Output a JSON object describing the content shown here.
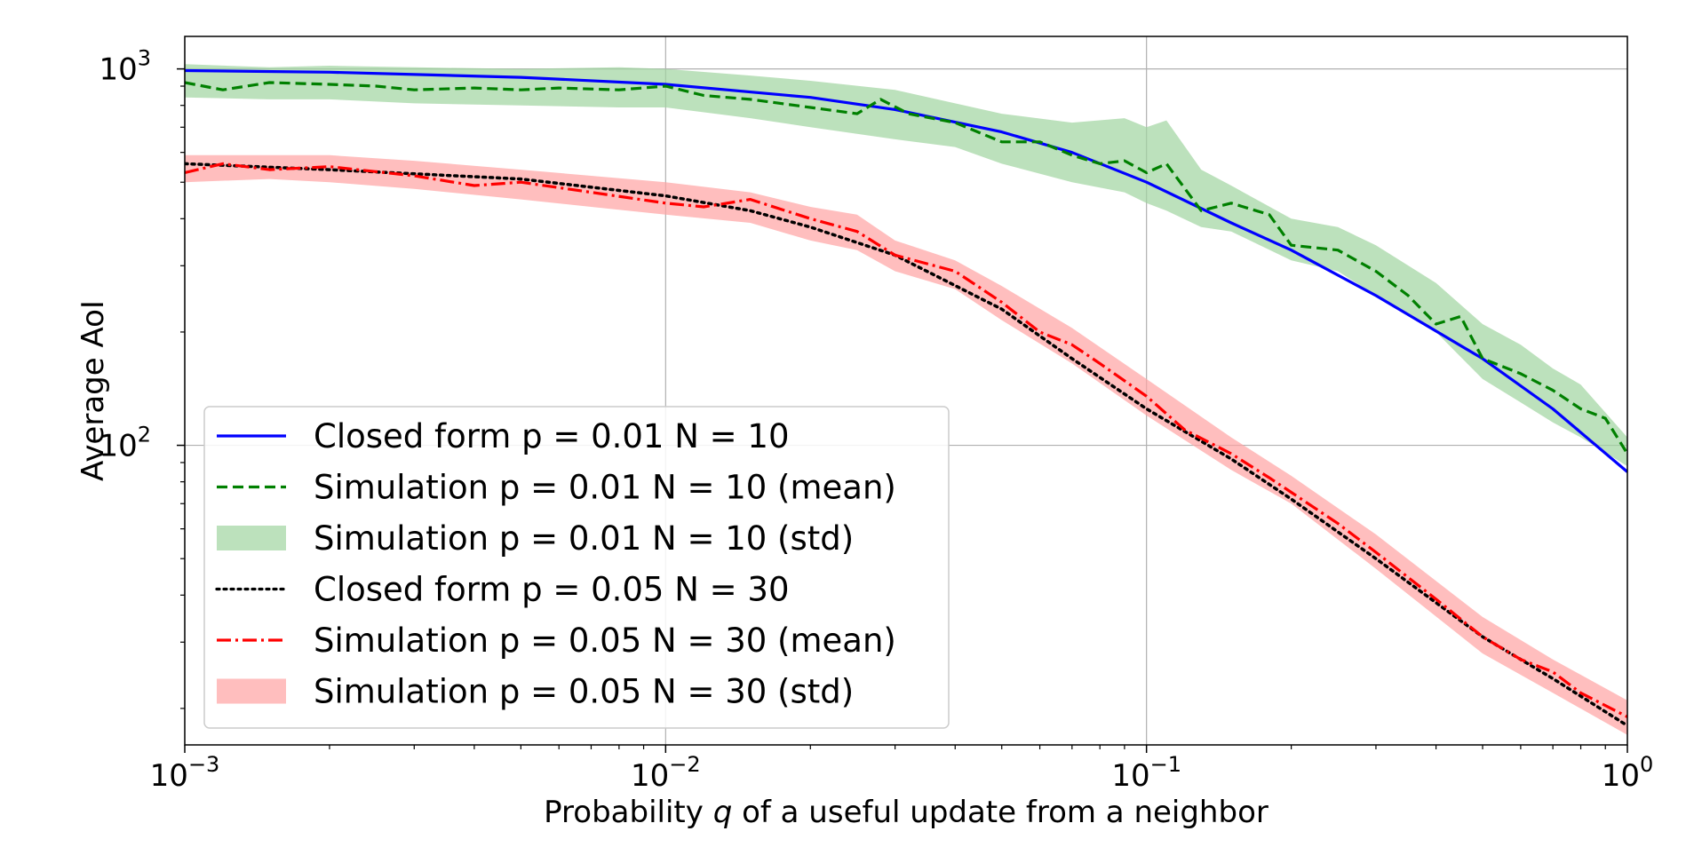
{
  "chart_data": {
    "type": "line",
    "x_scale": "log",
    "y_scale": "log",
    "xlim": [
      0.001,
      1
    ],
    "ylim": [
      16,
      1220
    ],
    "grid": true,
    "xlabel_prefix": "Probability ",
    "xlabel_var": "q",
    "xlabel_suffix": " of a useful update from a neighbor",
    "ylabel": "Average AoI",
    "x_ticks": [
      {
        "value": 0.001,
        "base": "10",
        "exp": "−3"
      },
      {
        "value": 0.01,
        "base": "10",
        "exp": "−2"
      },
      {
        "value": 0.1,
        "base": "10",
        "exp": "−1"
      },
      {
        "value": 1,
        "base": "10",
        "exp": "0"
      }
    ],
    "y_ticks": [
      {
        "value": 100,
        "base": "10",
        "exp": "2"
      },
      {
        "value": 1000,
        "base": "10",
        "exp": "3"
      }
    ],
    "legend_position": "lower-left",
    "colors": {
      "blue": "#0000ff",
      "green": "#008000",
      "green_fill": "#9fd49f",
      "black": "#000000",
      "red": "#ff0000",
      "red_fill": "#ffa3a3"
    },
    "series": [
      {
        "name": "Closed form p = 0.01 N = 10",
        "style": "solid",
        "color": "#0000ff",
        "x": [
          0.001,
          0.002,
          0.005,
          0.01,
          0.02,
          0.03,
          0.05,
          0.07,
          0.1,
          0.15,
          0.2,
          0.3,
          0.5,
          0.7,
          1.0
        ],
        "y": [
          990,
          980,
          950,
          910,
          840,
          780,
          680,
          600,
          500,
          390,
          330,
          250,
          170,
          125,
          85
        ]
      },
      {
        "name": "Simulation p = 0.01 N = 10 (mean)",
        "style": "dashed",
        "color": "#008000",
        "x": [
          0.001,
          0.0012,
          0.0015,
          0.002,
          0.0025,
          0.003,
          0.004,
          0.005,
          0.006,
          0.008,
          0.01,
          0.012,
          0.015,
          0.02,
          0.025,
          0.028,
          0.032,
          0.04,
          0.05,
          0.06,
          0.07,
          0.08,
          0.09,
          0.1,
          0.11,
          0.13,
          0.15,
          0.18,
          0.2,
          0.25,
          0.3,
          0.35,
          0.4,
          0.45,
          0.5,
          0.6,
          0.7,
          0.8,
          0.9,
          1.0
        ],
        "y": [
          920,
          880,
          920,
          910,
          900,
          880,
          890,
          880,
          890,
          880,
          900,
          850,
          830,
          790,
          760,
          830,
          760,
          720,
          640,
          640,
          590,
          560,
          570,
          530,
          560,
          420,
          440,
          410,
          340,
          330,
          290,
          250,
          210,
          220,
          170,
          155,
          140,
          125,
          118,
          95
        ]
      },
      {
        "name": "Simulation p = 0.01 N = 10 (std)",
        "style": "band",
        "color": "#9fd49f",
        "x": [
          0.001,
          0.0015,
          0.002,
          0.003,
          0.005,
          0.008,
          0.01,
          0.015,
          0.02,
          0.03,
          0.04,
          0.05,
          0.07,
          0.09,
          0.1,
          0.11,
          0.13,
          0.15,
          0.2,
          0.25,
          0.3,
          0.4,
          0.5,
          0.6,
          0.7,
          0.8,
          1.0
        ],
        "upper": [
          1030,
          1010,
          1020,
          1010,
          1000,
          1010,
          1000,
          960,
          930,
          880,
          810,
          760,
          720,
          740,
          700,
          730,
          540,
          490,
          400,
          380,
          340,
          270,
          210,
          185,
          160,
          145,
          105
        ],
        "lower": [
          840,
          830,
          830,
          810,
          800,
          790,
          790,
          740,
          700,
          650,
          620,
          560,
          500,
          470,
          440,
          420,
          380,
          370,
          310,
          290,
          250,
          200,
          150,
          130,
          115,
          105,
          88
        ]
      },
      {
        "name": "Closed form p = 0.05 N = 30",
        "style": "dotted",
        "color": "#000000",
        "x": [
          0.001,
          0.002,
          0.005,
          0.01,
          0.015,
          0.02,
          0.03,
          0.05,
          0.07,
          0.1,
          0.15,
          0.2,
          0.3,
          0.5,
          0.7,
          1.0
        ],
        "y": [
          560,
          540,
          510,
          460,
          420,
          380,
          320,
          230,
          170,
          125,
          92,
          72,
          50,
          31,
          24,
          18
        ]
      },
      {
        "name": "Simulation p = 0.05 N = 30 (mean)",
        "style": "dashdot",
        "color": "#ff0000",
        "x": [
          0.001,
          0.0012,
          0.0015,
          0.002,
          0.003,
          0.004,
          0.005,
          0.007,
          0.01,
          0.012,
          0.015,
          0.02,
          0.025,
          0.03,
          0.04,
          0.05,
          0.06,
          0.07,
          0.08,
          0.1,
          0.12,
          0.15,
          0.18,
          0.2,
          0.25,
          0.3,
          0.4,
          0.5,
          0.6,
          0.7,
          0.8,
          1.0
        ],
        "y": [
          530,
          560,
          540,
          550,
          520,
          490,
          500,
          470,
          440,
          430,
          450,
          400,
          370,
          320,
          290,
          240,
          200,
          185,
          165,
          135,
          110,
          95,
          82,
          75,
          62,
          52,
          39,
          31,
          27,
          25,
          22,
          19
        ]
      },
      {
        "name": "Simulation p = 0.05 N = 30 (std)",
        "style": "band",
        "color": "#ffa3a3",
        "x": [
          0.001,
          0.0015,
          0.002,
          0.003,
          0.005,
          0.007,
          0.01,
          0.015,
          0.02,
          0.025,
          0.03,
          0.04,
          0.05,
          0.07,
          0.1,
          0.15,
          0.2,
          0.3,
          0.5,
          0.7,
          1.0
        ],
        "upper": [
          590,
          590,
          590,
          570,
          540,
          520,
          500,
          470,
          430,
          410,
          350,
          310,
          265,
          205,
          150,
          105,
          83,
          58,
          35,
          27,
          21
        ],
        "lower": [
          500,
          510,
          500,
          480,
          450,
          430,
          410,
          390,
          350,
          330,
          290,
          260,
          215,
          165,
          120,
          86,
          70,
          47,
          28,
          22,
          17
        ]
      }
    ]
  }
}
